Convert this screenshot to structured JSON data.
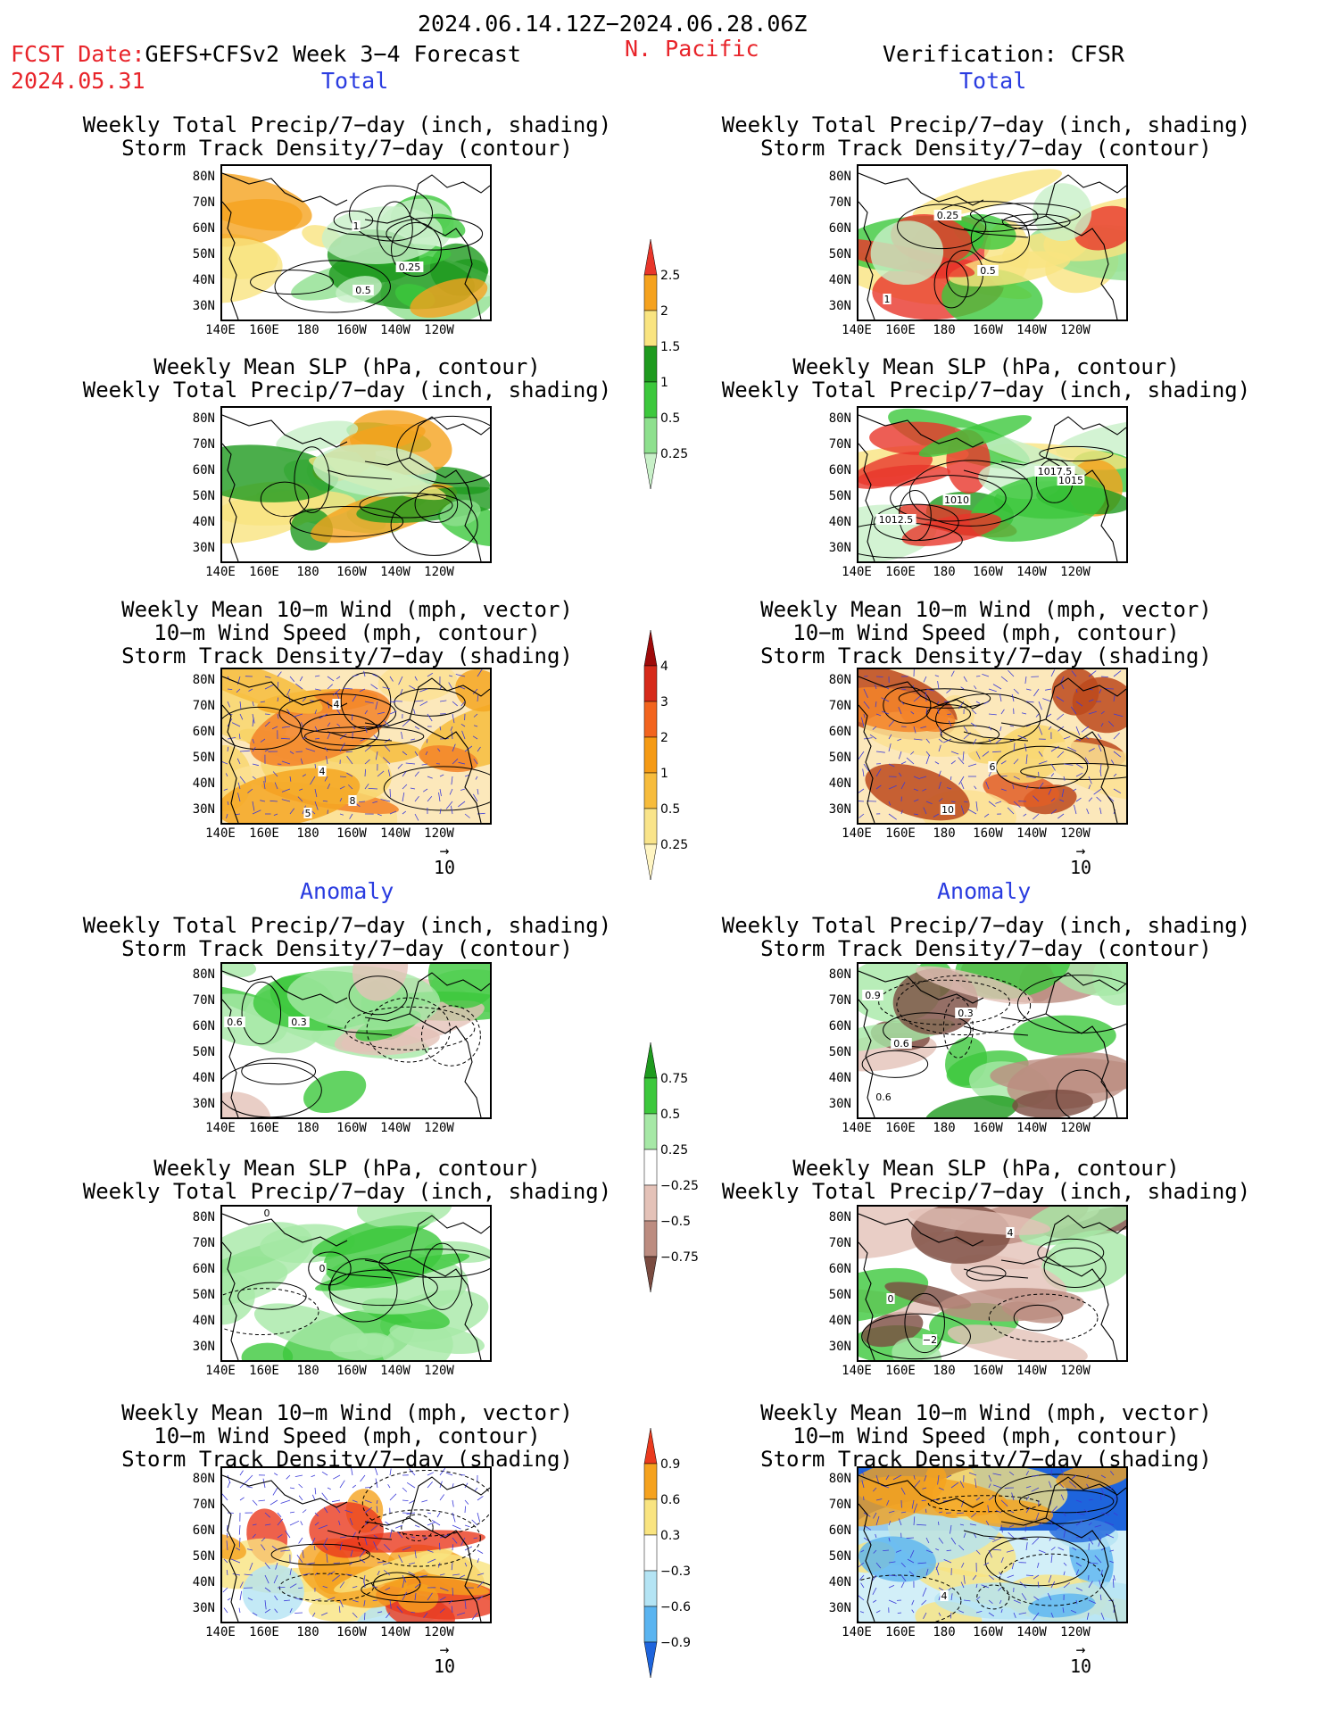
{
  "header": {
    "date_range": "2024.06.14.12Z−2024.06.28.06Z",
    "fcst_label": "FCST Date:",
    "forecast_name": "GEFS+CFSv2 Week 3−4 Forecast",
    "fcst_date": "2024.05.31",
    "region": "N. Pacific",
    "verification": "Verification: CFSR"
  },
  "sections": {
    "total": "Total",
    "anomaly": "Anomaly"
  },
  "panel_titles": {
    "precip_storm": [
      "Weekly Total Precip/7−day (inch, shading)",
      "Storm Track Density/7−day (contour)"
    ],
    "slp_precip": [
      "Weekly Mean SLP (hPa, contour)",
      "Weekly Total Precip/7−day (inch, shading)"
    ],
    "wind": [
      "Weekly Mean 10−m Wind (mph, vector)",
      "10−m Wind Speed (mph, contour)",
      "Storm Track Density/7−day (shading)"
    ]
  },
  "axes": {
    "lat_ticks": [
      "80N",
      "70N",
      "60N",
      "50N",
      "40N",
      "30N"
    ],
    "lon_ticks": [
      "140E",
      "160E",
      "180",
      "160W",
      "140W",
      "120W"
    ]
  },
  "vector_reference": "10",
  "contour_labels": {
    "fcst_total_precip": [
      "1",
      "0.25",
      "0.5"
    ],
    "cfsr_total_precip": [
      "0.25",
      "0.5",
      "1"
    ],
    "cfsr_total_slp": [
      "1017.5",
      "1015",
      "1010",
      "1012.5"
    ],
    "fcst_total_wind": [
      "4",
      "4",
      "8",
      "5"
    ],
    "cfsr_total_wind": [
      "6",
      "10"
    ],
    "fcst_anom_precip": [
      "0.6",
      "0.3"
    ],
    "cfsr_anom_precip": [
      "0.9",
      "0.3",
      "0.6",
      "0.6"
    ],
    "fcst_anom_slp": [
      "0",
      "0"
    ],
    "cfsr_anom_slp": [
      "4",
      "0",
      "−2"
    ],
    "cfsr_anom_wind": [
      "4"
    ]
  },
  "colorbars": {
    "precip_total": {
      "labels": [
        "2.5",
        "2",
        "1.5",
        "1",
        "0.5",
        "0.25"
      ],
      "colors": [
        "#e8362a",
        "#f5a21e",
        "#f9e480",
        "#1e9a1e",
        "#3cc83c",
        "#8ee08e",
        "#c8f0c8"
      ]
    },
    "storm_total": {
      "labels": [
        "4",
        "3",
        "2",
        "1",
        "0.5",
        "0.25"
      ],
      "colors": [
        "#9e0a0a",
        "#d62a1a",
        "#f2641e",
        "#f59a14",
        "#f7bc3c",
        "#f9e48a",
        "#fff5c2"
      ]
    },
    "precip_anom": {
      "labels": [
        "0.75",
        "0.5",
        "0.25",
        "−0.25",
        "−0.5",
        "−0.75"
      ],
      "colors": [
        "#1e9a1e",
        "#3cc83c",
        "#a6e8a6",
        "#ffffff",
        "#e4c2b8",
        "#bc8c80",
        "#7a4b40"
      ]
    },
    "storm_anom": {
      "labels": [
        "0.9",
        "0.6",
        "0.3",
        "−0.3",
        "−0.6",
        "−0.9"
      ],
      "colors": [
        "#ea3a1e",
        "#f5a21e",
        "#f9e480",
        "#ffffff",
        "#b4e4f4",
        "#5ab4f0",
        "#1e64dc"
      ]
    }
  },
  "colors": {
    "title_red": "#e8242a",
    "label_blue": "#2a3ce0"
  }
}
